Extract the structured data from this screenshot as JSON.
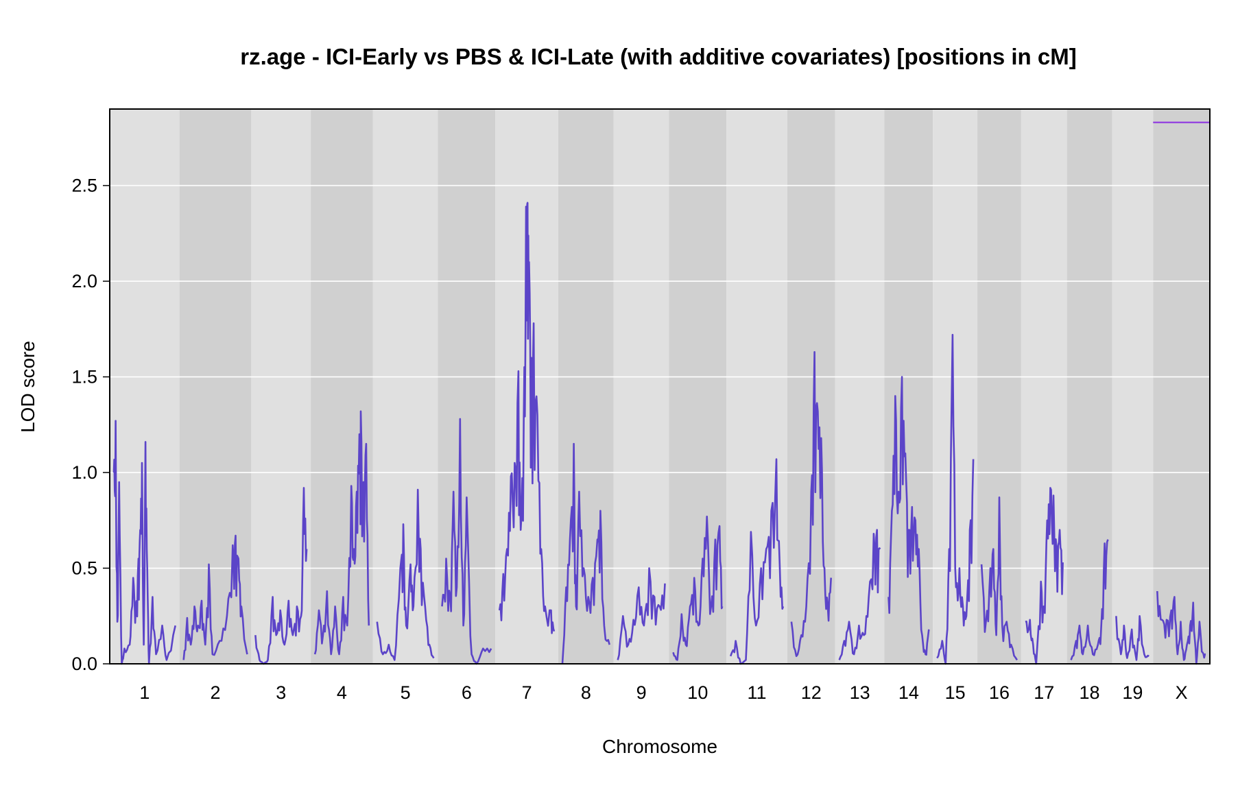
{
  "chart_data": {
    "type": "line",
    "title": "rz.age - ICI-Early vs PBS & ICI-Late (with additive covariates) [positions in cM]",
    "xlabel": "Chromosome",
    "ylabel": "LOD score",
    "ylim": [
      0,
      2.9
    ],
    "yticks": [
      "0.0",
      "0.5",
      "1.0",
      "1.5",
      "2.0",
      "2.5"
    ],
    "grid": "horizontal",
    "legend": "none",
    "colors": {
      "line": "#5b44c8",
      "threshold": "#8a2be2",
      "band_light": "#e0e0e0",
      "band_dark": "#d0d0d0",
      "grid": "#ffffff"
    },
    "threshold": {
      "chromosome": "X",
      "lod": 2.83
    },
    "chromosomes": [
      {
        "label": "1",
        "peaks": [
          [
            0,
            1.0
          ],
          [
            2,
            1.27
          ],
          [
            4,
            0.22
          ],
          [
            6,
            0.95
          ],
          [
            9,
            0.0
          ],
          [
            12,
            0.08
          ],
          [
            18,
            0.1
          ],
          [
            22,
            0.45
          ],
          [
            25,
            0.3
          ],
          [
            28,
            0.55
          ],
          [
            30,
            0.7
          ],
          [
            32,
            1.05
          ],
          [
            34,
            0.1
          ],
          [
            36,
            1.16
          ],
          [
            38,
            0.5
          ],
          [
            40,
            0.0
          ],
          [
            44,
            0.35
          ],
          [
            48,
            0.05
          ],
          [
            55,
            0.2
          ],
          [
            60,
            0.02
          ],
          [
            70,
            0.2
          ]
        ]
      },
      {
        "label": "2",
        "peaks": [
          [
            0,
            0.02
          ],
          [
            5,
            0.24
          ],
          [
            10,
            0.1
          ],
          [
            15,
            0.3
          ],
          [
            20,
            0.2
          ],
          [
            25,
            0.33
          ],
          [
            30,
            0.1
          ],
          [
            35,
            0.52
          ],
          [
            40,
            0.05
          ],
          [
            50,
            0.12
          ],
          [
            60,
            0.25
          ],
          [
            68,
            0.62
          ],
          [
            72,
            0.67
          ],
          [
            76,
            0.55
          ],
          [
            80,
            0.3
          ],
          [
            88,
            0.05
          ]
        ]
      },
      {
        "label": "3",
        "peaks": [
          [
            0,
            0.15
          ],
          [
            6,
            0.02
          ],
          [
            12,
            0.0
          ],
          [
            18,
            0.02
          ],
          [
            25,
            0.35
          ],
          [
            30,
            0.15
          ],
          [
            36,
            0.28
          ],
          [
            42,
            0.1
          ],
          [
            48,
            0.33
          ],
          [
            54,
            0.15
          ],
          [
            60,
            0.3
          ],
          [
            66,
            0.25
          ],
          [
            70,
            0.92
          ],
          [
            74,
            0.6
          ]
        ]
      },
      {
        "label": "4",
        "peaks": [
          [
            0,
            0.05
          ],
          [
            6,
            0.28
          ],
          [
            12,
            0.15
          ],
          [
            18,
            0.38
          ],
          [
            24,
            0.05
          ],
          [
            30,
            0.3
          ],
          [
            36,
            0.05
          ],
          [
            42,
            0.35
          ],
          [
            48,
            0.2
          ],
          [
            54,
            0.93
          ],
          [
            58,
            0.6
          ],
          [
            62,
            0.9
          ],
          [
            66,
            1.2
          ],
          [
            68,
            1.32
          ],
          [
            72,
            0.95
          ],
          [
            76,
            1.15
          ],
          [
            80,
            0.2
          ]
        ]
      },
      {
        "label": "5",
        "peaks": [
          [
            0,
            0.22
          ],
          [
            8,
            0.05
          ],
          [
            16,
            0.1
          ],
          [
            24,
            0.02
          ],
          [
            32,
            0.5
          ],
          [
            36,
            0.73
          ],
          [
            40,
            0.2
          ],
          [
            46,
            0.52
          ],
          [
            50,
            0.3
          ],
          [
            56,
            0.91
          ],
          [
            60,
            0.6
          ],
          [
            66,
            0.3
          ],
          [
            72,
            0.1
          ],
          [
            78,
            0.03
          ]
        ]
      },
      {
        "label": "6",
        "peaks": [
          [
            0,
            0.3
          ],
          [
            5,
            0.55
          ],
          [
            10,
            0.35
          ],
          [
            14,
            0.9
          ],
          [
            18,
            0.4
          ],
          [
            22,
            1.28
          ],
          [
            26,
            0.2
          ],
          [
            30,
            0.87
          ],
          [
            36,
            0.05
          ],
          [
            42,
            0.0
          ],
          [
            50,
            0.08
          ],
          [
            60,
            0.08
          ]
        ]
      },
      {
        "label": "7",
        "peaks": [
          [
            0,
            0.28
          ],
          [
            5,
            0.47
          ],
          [
            10,
            0.6
          ],
          [
            15,
            0.98
          ],
          [
            20,
            1.05
          ],
          [
            25,
            1.53
          ],
          [
            28,
            0.7
          ],
          [
            32,
            1.3
          ],
          [
            35,
            2.39
          ],
          [
            37,
            2.41
          ],
          [
            39,
            2.1
          ],
          [
            42,
            1.6
          ],
          [
            45,
            1.78
          ],
          [
            50,
            1.3
          ],
          [
            55,
            0.6
          ],
          [
            60,
            0.3
          ],
          [
            68,
            0.28
          ],
          [
            72,
            0.17
          ]
        ]
      },
      {
        "label": "8",
        "peaks": [
          [
            0,
            0.0
          ],
          [
            5,
            0.4
          ],
          [
            10,
            0.65
          ],
          [
            15,
            1.15
          ],
          [
            18,
            0.3
          ],
          [
            22,
            0.9
          ],
          [
            28,
            0.5
          ],
          [
            34,
            0.35
          ],
          [
            40,
            0.45
          ],
          [
            46,
            0.65
          ],
          [
            50,
            0.8
          ],
          [
            55,
            0.2
          ],
          [
            62,
            0.1
          ]
        ]
      },
      {
        "label": "9",
        "peaks": [
          [
            0,
            0.02
          ],
          [
            6,
            0.25
          ],
          [
            12,
            0.1
          ],
          [
            18,
            0.23
          ],
          [
            24,
            0.4
          ],
          [
            30,
            0.2
          ],
          [
            36,
            0.5
          ],
          [
            42,
            0.35
          ],
          [
            48,
            0.3
          ],
          [
            54,
            0.42
          ]
        ]
      },
      {
        "label": "10",
        "peaks": [
          [
            0,
            0.06
          ],
          [
            6,
            0.02
          ],
          [
            12,
            0.26
          ],
          [
            18,
            0.1
          ],
          [
            24,
            0.3
          ],
          [
            30,
            0.45
          ],
          [
            36,
            0.2
          ],
          [
            42,
            0.55
          ],
          [
            48,
            0.77
          ],
          [
            54,
            0.3
          ],
          [
            60,
            0.65
          ],
          [
            66,
            0.72
          ],
          [
            70,
            0.3
          ]
        ]
      },
      {
        "label": "11",
        "peaks": [
          [
            0,
            0.04
          ],
          [
            6,
            0.12
          ],
          [
            12,
            0.0
          ],
          [
            18,
            0.02
          ],
          [
            24,
            0.69
          ],
          [
            30,
            0.2
          ],
          [
            36,
            0.5
          ],
          [
            42,
            0.6
          ],
          [
            48,
            0.8
          ],
          [
            54,
            1.07
          ],
          [
            58,
            0.5
          ],
          [
            62,
            0.3
          ]
        ]
      },
      {
        "label": "12",
        "peaks": [
          [
            0,
            0.22
          ],
          [
            6,
            0.04
          ],
          [
            12,
            0.15
          ],
          [
            18,
            0.3
          ],
          [
            24,
            0.9
          ],
          [
            28,
            1.63
          ],
          [
            32,
            1.32
          ],
          [
            36,
            1.18
          ],
          [
            40,
            0.5
          ],
          [
            44,
            0.3
          ],
          [
            48,
            0.45
          ]
        ]
      },
      {
        "label": "13",
        "peaks": [
          [
            0,
            0.02
          ],
          [
            6,
            0.12
          ],
          [
            12,
            0.22
          ],
          [
            18,
            0.05
          ],
          [
            24,
            0.2
          ],
          [
            30,
            0.15
          ],
          [
            36,
            0.35
          ],
          [
            42,
            0.68
          ],
          [
            46,
            0.7
          ],
          [
            50,
            0.6
          ]
        ]
      },
      {
        "label": "14",
        "peaks": [
          [
            0,
            0.35
          ],
          [
            4,
            0.8
          ],
          [
            8,
            1.4
          ],
          [
            12,
            0.9
          ],
          [
            16,
            1.5
          ],
          [
            20,
            1.1
          ],
          [
            24,
            0.7
          ],
          [
            28,
            0.82
          ],
          [
            32,
            0.75
          ],
          [
            36,
            0.6
          ],
          [
            40,
            0.15
          ],
          [
            44,
            0.05
          ],
          [
            48,
            0.18
          ]
        ]
      },
      {
        "label": "15",
        "peaks": [
          [
            0,
            0.03
          ],
          [
            6,
            0.12
          ],
          [
            10,
            0.0
          ],
          [
            14,
            0.6
          ],
          [
            18,
            1.72
          ],
          [
            22,
            0.4
          ],
          [
            26,
            0.5
          ],
          [
            30,
            0.3
          ],
          [
            34,
            0.25
          ],
          [
            38,
            0.7
          ],
          [
            42,
            1.07
          ]
        ]
      },
      {
        "label": "16",
        "peaks": [
          [
            0,
            0.52
          ],
          [
            6,
            0.22
          ],
          [
            12,
            0.5
          ],
          [
            16,
            0.6
          ],
          [
            20,
            0.15
          ],
          [
            24,
            0.87
          ],
          [
            28,
            0.2
          ],
          [
            34,
            0.22
          ],
          [
            40,
            0.1
          ],
          [
            48,
            0.02
          ]
        ]
      },
      {
        "label": "17",
        "peaks": [
          [
            0,
            0.22
          ],
          [
            6,
            0.23
          ],
          [
            10,
            0.1
          ],
          [
            14,
            0.0
          ],
          [
            20,
            0.43
          ],
          [
            24,
            0.3
          ],
          [
            28,
            0.75
          ],
          [
            32,
            0.92
          ],
          [
            36,
            0.88
          ],
          [
            40,
            0.6
          ],
          [
            44,
            0.7
          ],
          [
            48,
            0.53
          ]
        ]
      },
      {
        "label": "18",
        "peaks": [
          [
            0,
            0.02
          ],
          [
            6,
            0.12
          ],
          [
            10,
            0.2
          ],
          [
            14,
            0.05
          ],
          [
            20,
            0.2
          ],
          [
            26,
            0.05
          ],
          [
            32,
            0.1
          ],
          [
            36,
            0.2
          ],
          [
            40,
            0.63
          ],
          [
            44,
            0.65
          ]
        ]
      },
      {
        "label": "19",
        "peaks": [
          [
            0,
            0.25
          ],
          [
            6,
            0.05
          ],
          [
            10,
            0.2
          ],
          [
            14,
            0.03
          ],
          [
            20,
            0.18
          ],
          [
            26,
            0.02
          ],
          [
            30,
            0.25
          ],
          [
            36,
            0.05
          ],
          [
            42,
            0.04
          ]
        ]
      },
      {
        "label": "X",
        "peaks": [
          [
            0,
            0.38
          ],
          [
            6,
            0.23
          ],
          [
            12,
            0.23
          ],
          [
            18,
            0.28
          ],
          [
            22,
            0.35
          ],
          [
            26,
            0.05
          ],
          [
            30,
            0.22
          ],
          [
            34,
            0.02
          ],
          [
            38,
            0.1
          ],
          [
            42,
            0.2
          ],
          [
            46,
            0.32
          ],
          [
            50,
            0.0
          ],
          [
            54,
            0.22
          ],
          [
            58,
            0.06
          ],
          [
            62,
            0.05
          ]
        ]
      }
    ]
  }
}
